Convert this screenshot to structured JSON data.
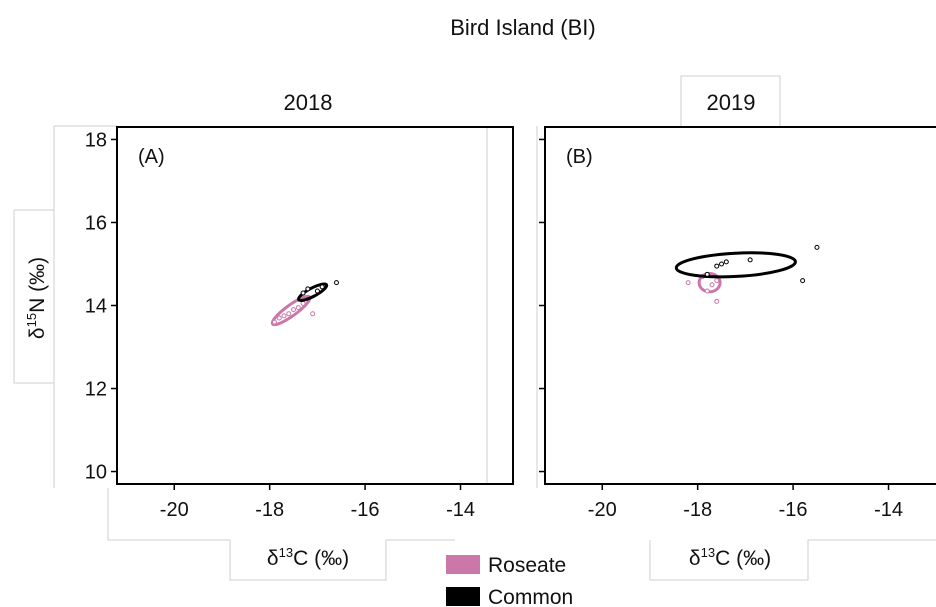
{
  "suptitle": "Bird Island (BI)",
  "ylabel_base": "δ",
  "ylabel_sup": "15",
  "ylabel_tail": "N (‰)",
  "xlabel_base": "δ",
  "xlabel_sup": "13",
  "xlabel_tail": "C (‰)",
  "legend": [
    {
      "label": "Roseate",
      "color": "#cc77aa"
    },
    {
      "label": "Common",
      "color": "#000000"
    }
  ],
  "chart_data": [
    {
      "type": "scatter",
      "title": "2018",
      "panel_label": "(A)",
      "xlim": [
        -21.2,
        -12.9
      ],
      "ylim": [
        9.7,
        18.3
      ],
      "xticks": [
        -20,
        -18,
        -16,
        -14
      ],
      "yticks": [
        10,
        12,
        14,
        16,
        18
      ],
      "series": [
        {
          "name": "Roseate",
          "color": "#cc77aa",
          "ellipse": {
            "cx": -17.55,
            "cy": 13.88,
            "rx": 0.48,
            "ry": 0.13,
            "angle_deg": 36
          },
          "points": [
            [
              -17.9,
              13.6
            ],
            [
              -17.8,
              13.7
            ],
            [
              -17.6,
              13.8
            ],
            [
              -17.4,
              13.95
            ],
            [
              -17.3,
              14.05
            ],
            [
              -17.1,
              13.8
            ],
            [
              -17.5,
              13.9
            ],
            [
              -17.7,
              13.75
            ]
          ]
        },
        {
          "name": "Common",
          "color": "#000000",
          "ellipse": {
            "cx": -17.1,
            "cy": 14.32,
            "rx": 0.33,
            "ry": 0.1,
            "angle_deg": 28
          },
          "points": [
            [
              -16.6,
              14.55
            ],
            [
              -17.3,
              14.3
            ],
            [
              -17.2,
              14.4
            ],
            [
              -17.0,
              14.35
            ],
            [
              -16.9,
              14.45
            ]
          ]
        }
      ]
    },
    {
      "type": "scatter",
      "title": "2019",
      "panel_label": "(B)",
      "xlim": [
        -21.2,
        -12.9
      ],
      "ylim": [
        9.7,
        18.3
      ],
      "xticks": [
        -20,
        -18,
        -16,
        -14
      ],
      "yticks": [
        10,
        12,
        14,
        16,
        18
      ],
      "series": [
        {
          "name": "Roseate",
          "color": "#cc77aa",
          "ellipse": {
            "cx": -17.75,
            "cy": 14.55,
            "rx": 0.22,
            "ry": 0.22,
            "angle_deg": 0
          },
          "points": [
            [
              -18.2,
              14.55
            ],
            [
              -17.8,
              14.35
            ],
            [
              -17.6,
              14.1
            ],
            [
              -17.7,
              14.5
            ],
            [
              -17.9,
              14.7
            ],
            [
              -17.6,
              14.6
            ]
          ]
        },
        {
          "name": "Common",
          "color": "#000000",
          "ellipse": {
            "cx": -17.2,
            "cy": 14.98,
            "rx": 1.25,
            "ry": 0.28,
            "angle_deg": 3
          },
          "points": [
            [
              -15.5,
              15.4
            ],
            [
              -15.8,
              14.6
            ],
            [
              -16.9,
              15.1
            ],
            [
              -17.5,
              15.0
            ],
            [
              -17.6,
              14.95
            ],
            [
              -17.8,
              14.75
            ],
            [
              -17.4,
              15.05
            ]
          ]
        }
      ]
    }
  ]
}
